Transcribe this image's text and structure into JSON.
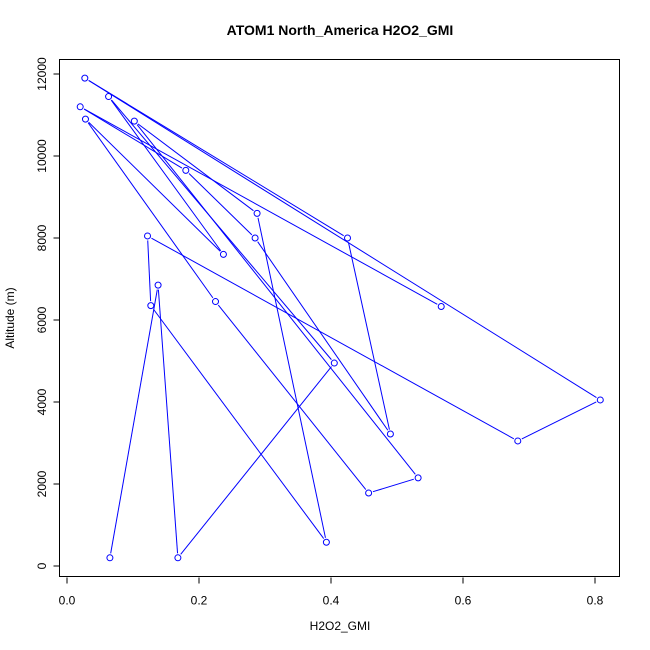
{
  "chart_data": {
    "type": "line",
    "title": "ATOM1 North_America H2O2_GMI",
    "xlabel": "H2O2_GMI",
    "ylabel": "Altitude (m)",
    "xlim": [
      0,
      0.8
    ],
    "ylim": [
      0,
      12000
    ],
    "x_ticks": [
      0.0,
      0.2,
      0.4,
      0.6,
      0.8
    ],
    "x_tick_labels": [
      "0.0",
      "0.2",
      "0.4",
      "0.6",
      "0.8"
    ],
    "y_ticks": [
      0,
      2000,
      4000,
      6000,
      8000,
      10000,
      12000
    ],
    "y_tick_labels": [
      "0",
      "2000",
      "4000",
      "6000",
      "8000",
      "10000",
      "12000"
    ],
    "grid": false,
    "series_color": "#0000ff",
    "marker": "open-circle",
    "points": [
      {
        "x": 0.065,
        "y": 200
      },
      {
        "x": 0.138,
        "y": 6850
      },
      {
        "x": 0.168,
        "y": 200
      },
      {
        "x": 0.405,
        "y": 4950
      },
      {
        "x": 0.063,
        "y": 11450
      },
      {
        "x": 0.237,
        "y": 7600
      },
      {
        "x": 0.028,
        "y": 10900
      },
      {
        "x": 0.225,
        "y": 6450
      },
      {
        "x": 0.457,
        "y": 1780
      },
      {
        "x": 0.532,
        "y": 2150
      },
      {
        "x": 0.102,
        "y": 10850
      },
      {
        "x": 0.288,
        "y": 8600
      },
      {
        "x": 0.393,
        "y": 580
      },
      {
        "x": 0.127,
        "y": 6350
      },
      {
        "x": 0.122,
        "y": 8050
      },
      {
        "x": 0.683,
        "y": 3050
      },
      {
        "x": 0.808,
        "y": 4050
      },
      {
        "x": 0.027,
        "y": 11900
      },
      {
        "x": 0.425,
        "y": 8000
      },
      {
        "x": 0.49,
        "y": 3220
      },
      {
        "x": 0.285,
        "y": 8000
      },
      {
        "x": 0.18,
        "y": 9650
      },
      {
        "x": 0.02,
        "y": 11200
      },
      {
        "x": 0.567,
        "y": 6330
      }
    ]
  }
}
